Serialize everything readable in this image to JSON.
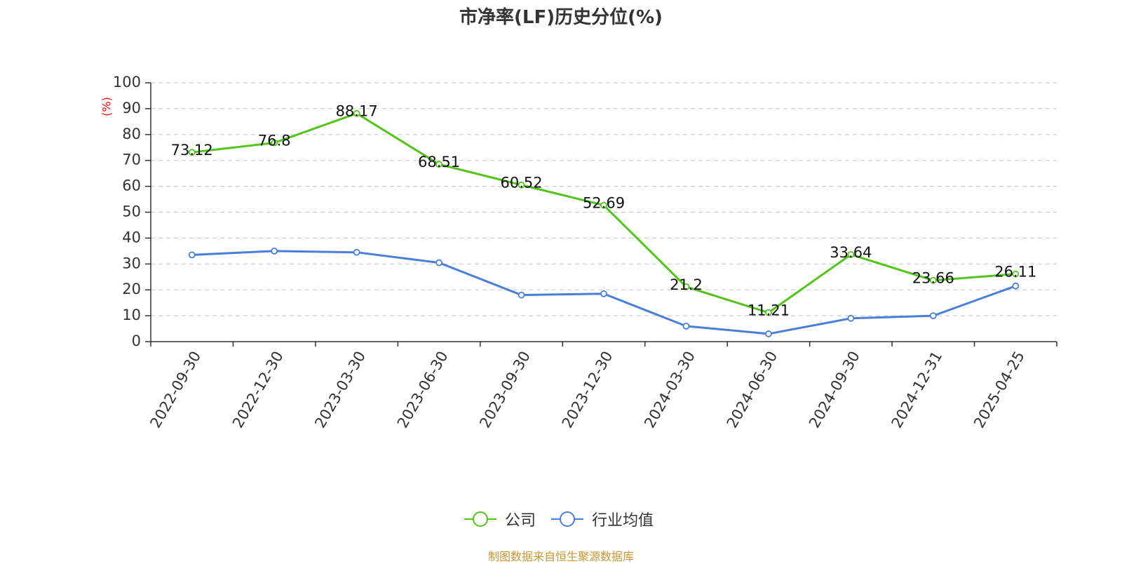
{
  "chart_data": {
    "type": "line",
    "title": "市净率(LF)历史分位(%)",
    "ylabel": "(%)",
    "ylim": [
      0,
      100
    ],
    "yticks": [
      0,
      10,
      20,
      30,
      40,
      50,
      60,
      70,
      80,
      90,
      100
    ],
    "grid": true,
    "legend_position": "bottom-center",
    "categories": [
      "2022-09-30",
      "2022-12-30",
      "2023-03-30",
      "2023-06-30",
      "2023-09-30",
      "2023-12-30",
      "2024-03-30",
      "2024-06-30",
      "2024-09-30",
      "2024-12-31",
      "2025-04-25"
    ],
    "series": [
      {
        "name": "公司",
        "color": "#52c41a",
        "values": [
          73.12,
          76.8,
          88.17,
          68.51,
          60.52,
          52.69,
          21.2,
          11.21,
          33.64,
          23.66,
          26.11
        ],
        "data_labels": [
          "73.12",
          "76.8",
          "88.17",
          "68.51",
          "60.52",
          "52.69",
          "21.2",
          "11.21",
          "33.64",
          "23.66",
          "26.11"
        ]
      },
      {
        "name": "行业均值",
        "color": "#4a7fd9",
        "values": [
          33.5,
          35.0,
          34.5,
          30.5,
          18.0,
          18.5,
          6.0,
          3.0,
          9.0,
          10.0,
          21.5
        ]
      }
    ]
  },
  "source": "制图数据来自恒生聚源数据库"
}
